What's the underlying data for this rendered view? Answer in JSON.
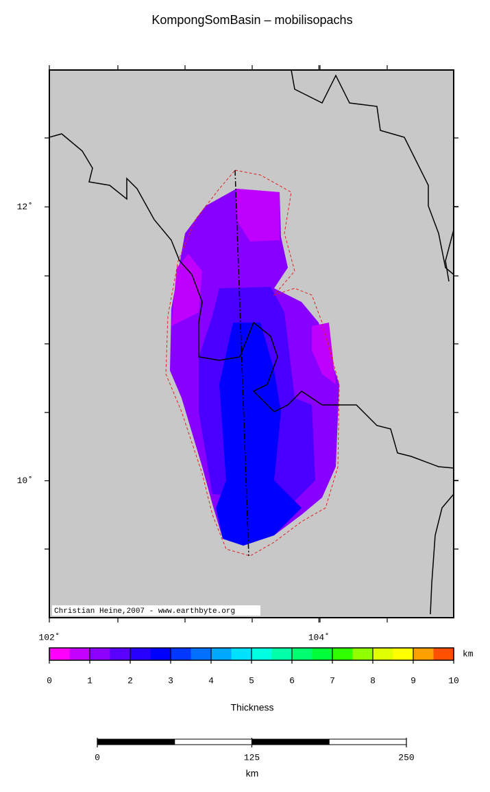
{
  "title": "KompongSomBasin – mobilisopachs",
  "map": {
    "lon_range": [
      102,
      105
    ],
    "lat_range": [
      9,
      13
    ],
    "lon_ticks": [
      {
        "value": 102,
        "label": "102˚"
      },
      {
        "value": 104,
        "label": "104˚"
      }
    ],
    "lat_ticks": [
      {
        "value": 10,
        "label": "10˚"
      },
      {
        "value": 12,
        "label": "12˚"
      }
    ],
    "credit": "Christian Heine,2007 - www.earthbyte.org"
  },
  "colorbar": {
    "range": [
      0,
      10
    ],
    "ticks": [
      0,
      1,
      2,
      3,
      4,
      5,
      6,
      7,
      8,
      9,
      10
    ],
    "unit": "km",
    "label": "Thickness",
    "colors": [
      "#ff00ff",
      "#c400ff",
      "#8c00ff",
      "#5a00ff",
      "#2800ff",
      "#0000ff",
      "#0038ff",
      "#0070ff",
      "#00a8ff",
      "#00e0ff",
      "#00ffe0",
      "#00ffa8",
      "#00ff70",
      "#00ff38",
      "#30ff00",
      "#90ff00",
      "#e0ff00",
      "#ffff00",
      "#ffa000",
      "#ff5000"
    ]
  },
  "scale_bar": {
    "range": [
      0,
      250
    ],
    "ticks": [
      0,
      125,
      250
    ],
    "unit": "km"
  }
}
